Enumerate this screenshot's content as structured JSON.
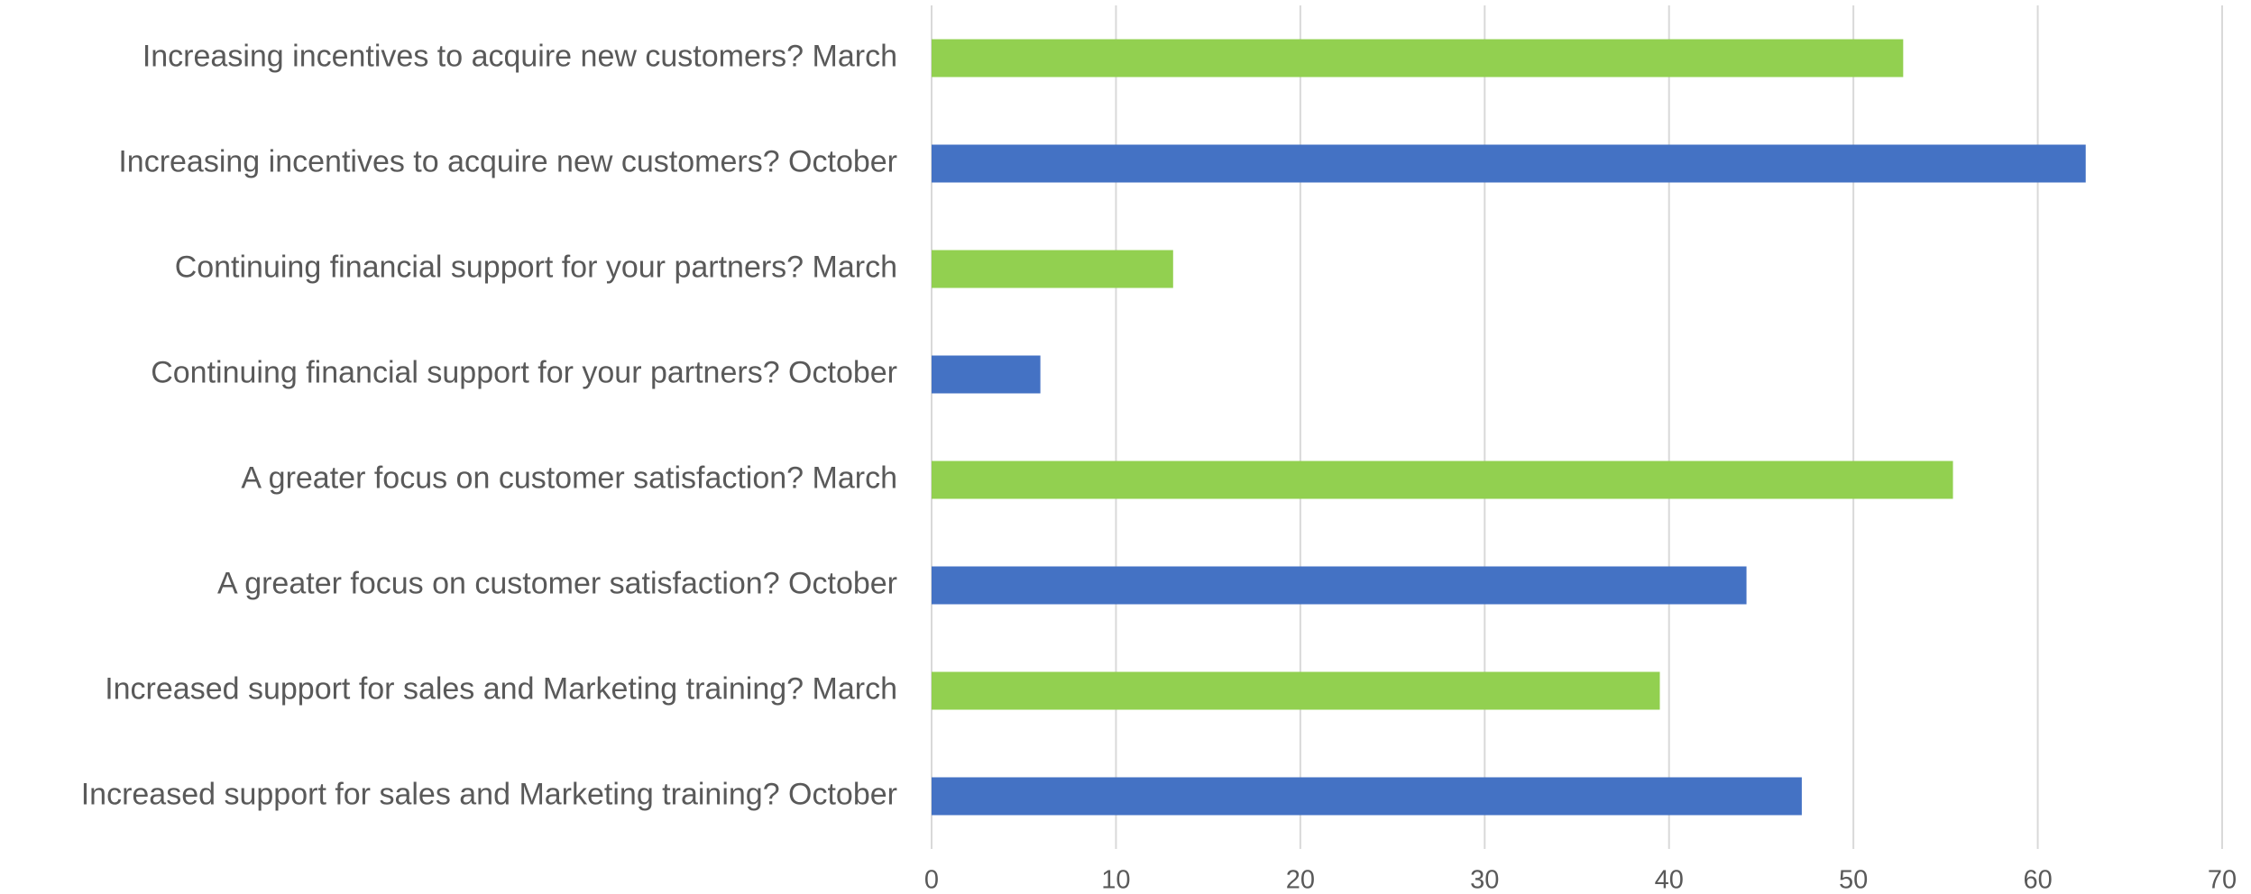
{
  "chart_data": {
    "type": "bar",
    "orientation": "horizontal",
    "categories": [
      "Increasing incentives to acquire new customers? March",
      "Increasing incentives to acquire new customers? October",
      "Continuing financial support for your partners? March",
      "Continuing financial support for your partners? October",
      "A greater focus on customer satisfaction? March",
      "A greater focus on customer satisfaction? October",
      "Increased support for sales and Marketing training? March",
      "Increased support for sales and Marketing training? October"
    ],
    "values": [
      52.7,
      62.6,
      13.1,
      5.9,
      55.4,
      44.2,
      39.5,
      47.2
    ],
    "colors": [
      "#92d050",
      "#4472c4",
      "#92d050",
      "#4472c4",
      "#92d050",
      "#4472c4",
      "#92d050",
      "#4472c4"
    ],
    "xlim": [
      0,
      70
    ],
    "xticks": [
      0,
      10,
      20,
      30,
      40,
      50,
      60,
      70
    ],
    "grid": true
  }
}
